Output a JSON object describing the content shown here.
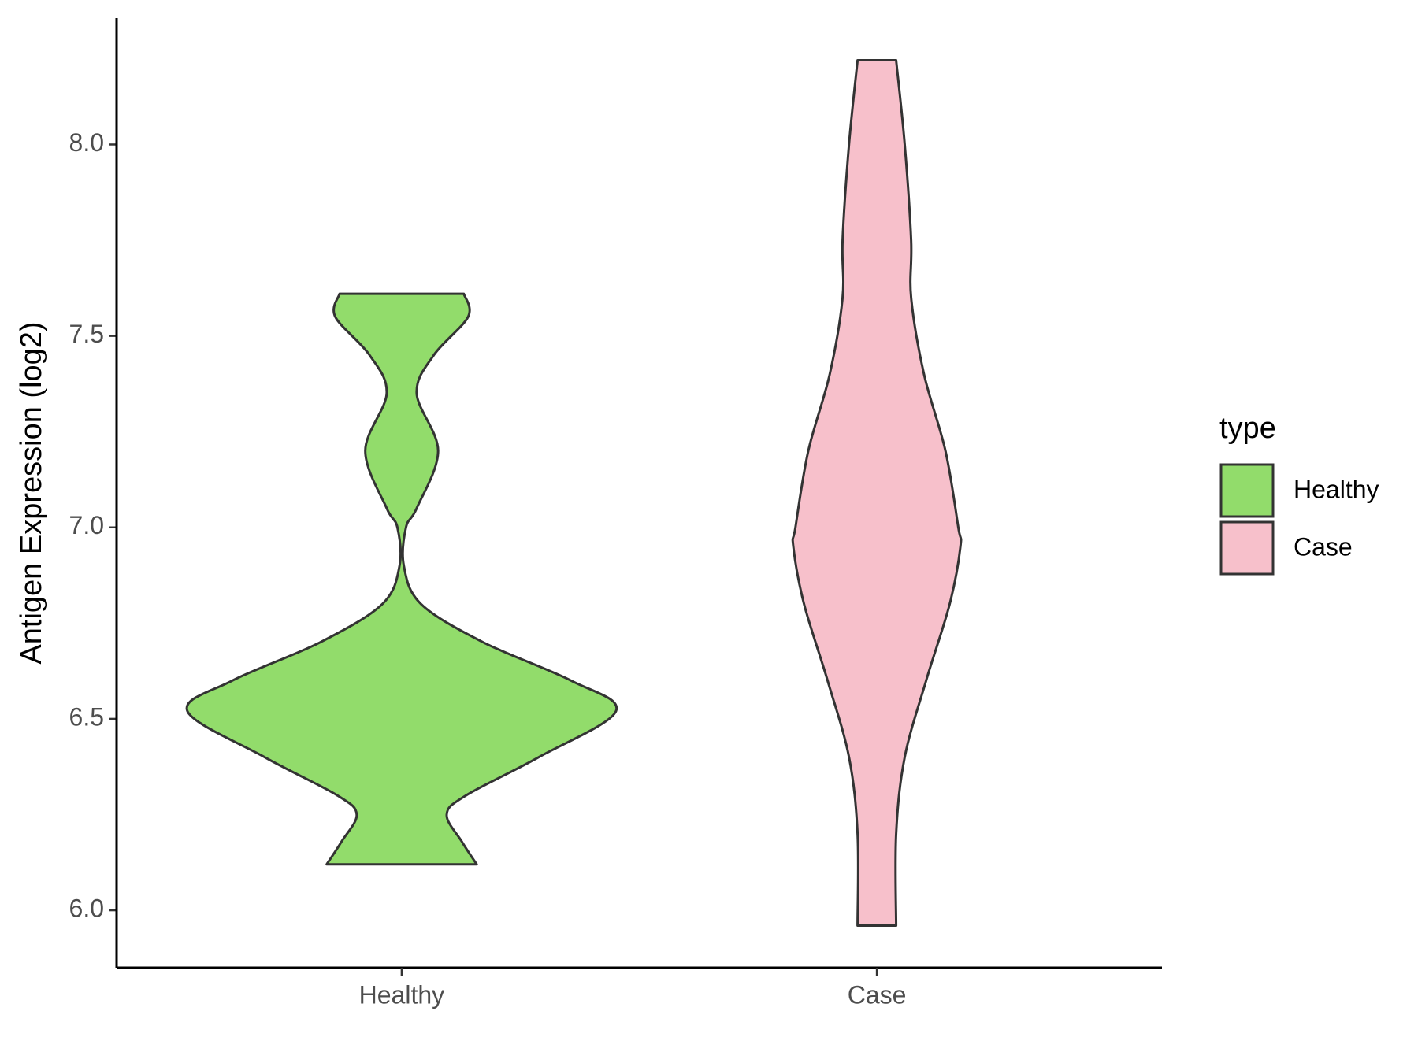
{
  "chart_data": {
    "type": "violin",
    "y_label": "Antigen Expression (log2)",
    "categories": [
      "Healthy",
      "Case"
    ],
    "legend_title": "type",
    "ylim": [
      5.85,
      8.33
    ],
    "yticks": [
      {
        "value": 6,
        "label": "6.0"
      },
      6.5,
      {
        "value": 7,
        "label": "7.0"
      },
      7.5,
      {
        "value": 8,
        "label": "8.0"
      }
    ],
    "series": [
      {
        "name": "Healthy",
        "color": "#92dc6b",
        "y": [
          7.61,
          7.55,
          7.45,
          7.35,
          7.2,
          7.05,
          7.0,
          6.9,
          6.8,
          6.7,
          6.6,
          6.52,
          6.4,
          6.3,
          6.25,
          6.18,
          6.12
        ],
        "density": [
          0.29,
          0.31,
          0.15,
          0.07,
          0.17,
          0.07,
          0.02,
          0.01,
          0.09,
          0.38,
          0.79,
          1.0,
          0.64,
          0.3,
          0.21,
          0.28,
          0.35
        ]
      },
      {
        "name": "Case",
        "color": "#f7c0cb",
        "y": [
          8.22,
          8.0,
          7.75,
          7.6,
          7.4,
          7.2,
          7.0,
          6.95,
          6.8,
          6.6,
          6.4,
          6.2,
          5.96
        ],
        "density": [
          0.09,
          0.13,
          0.16,
          0.16,
          0.22,
          0.32,
          0.38,
          0.39,
          0.34,
          0.23,
          0.13,
          0.09,
          0.09
        ]
      }
    ]
  }
}
